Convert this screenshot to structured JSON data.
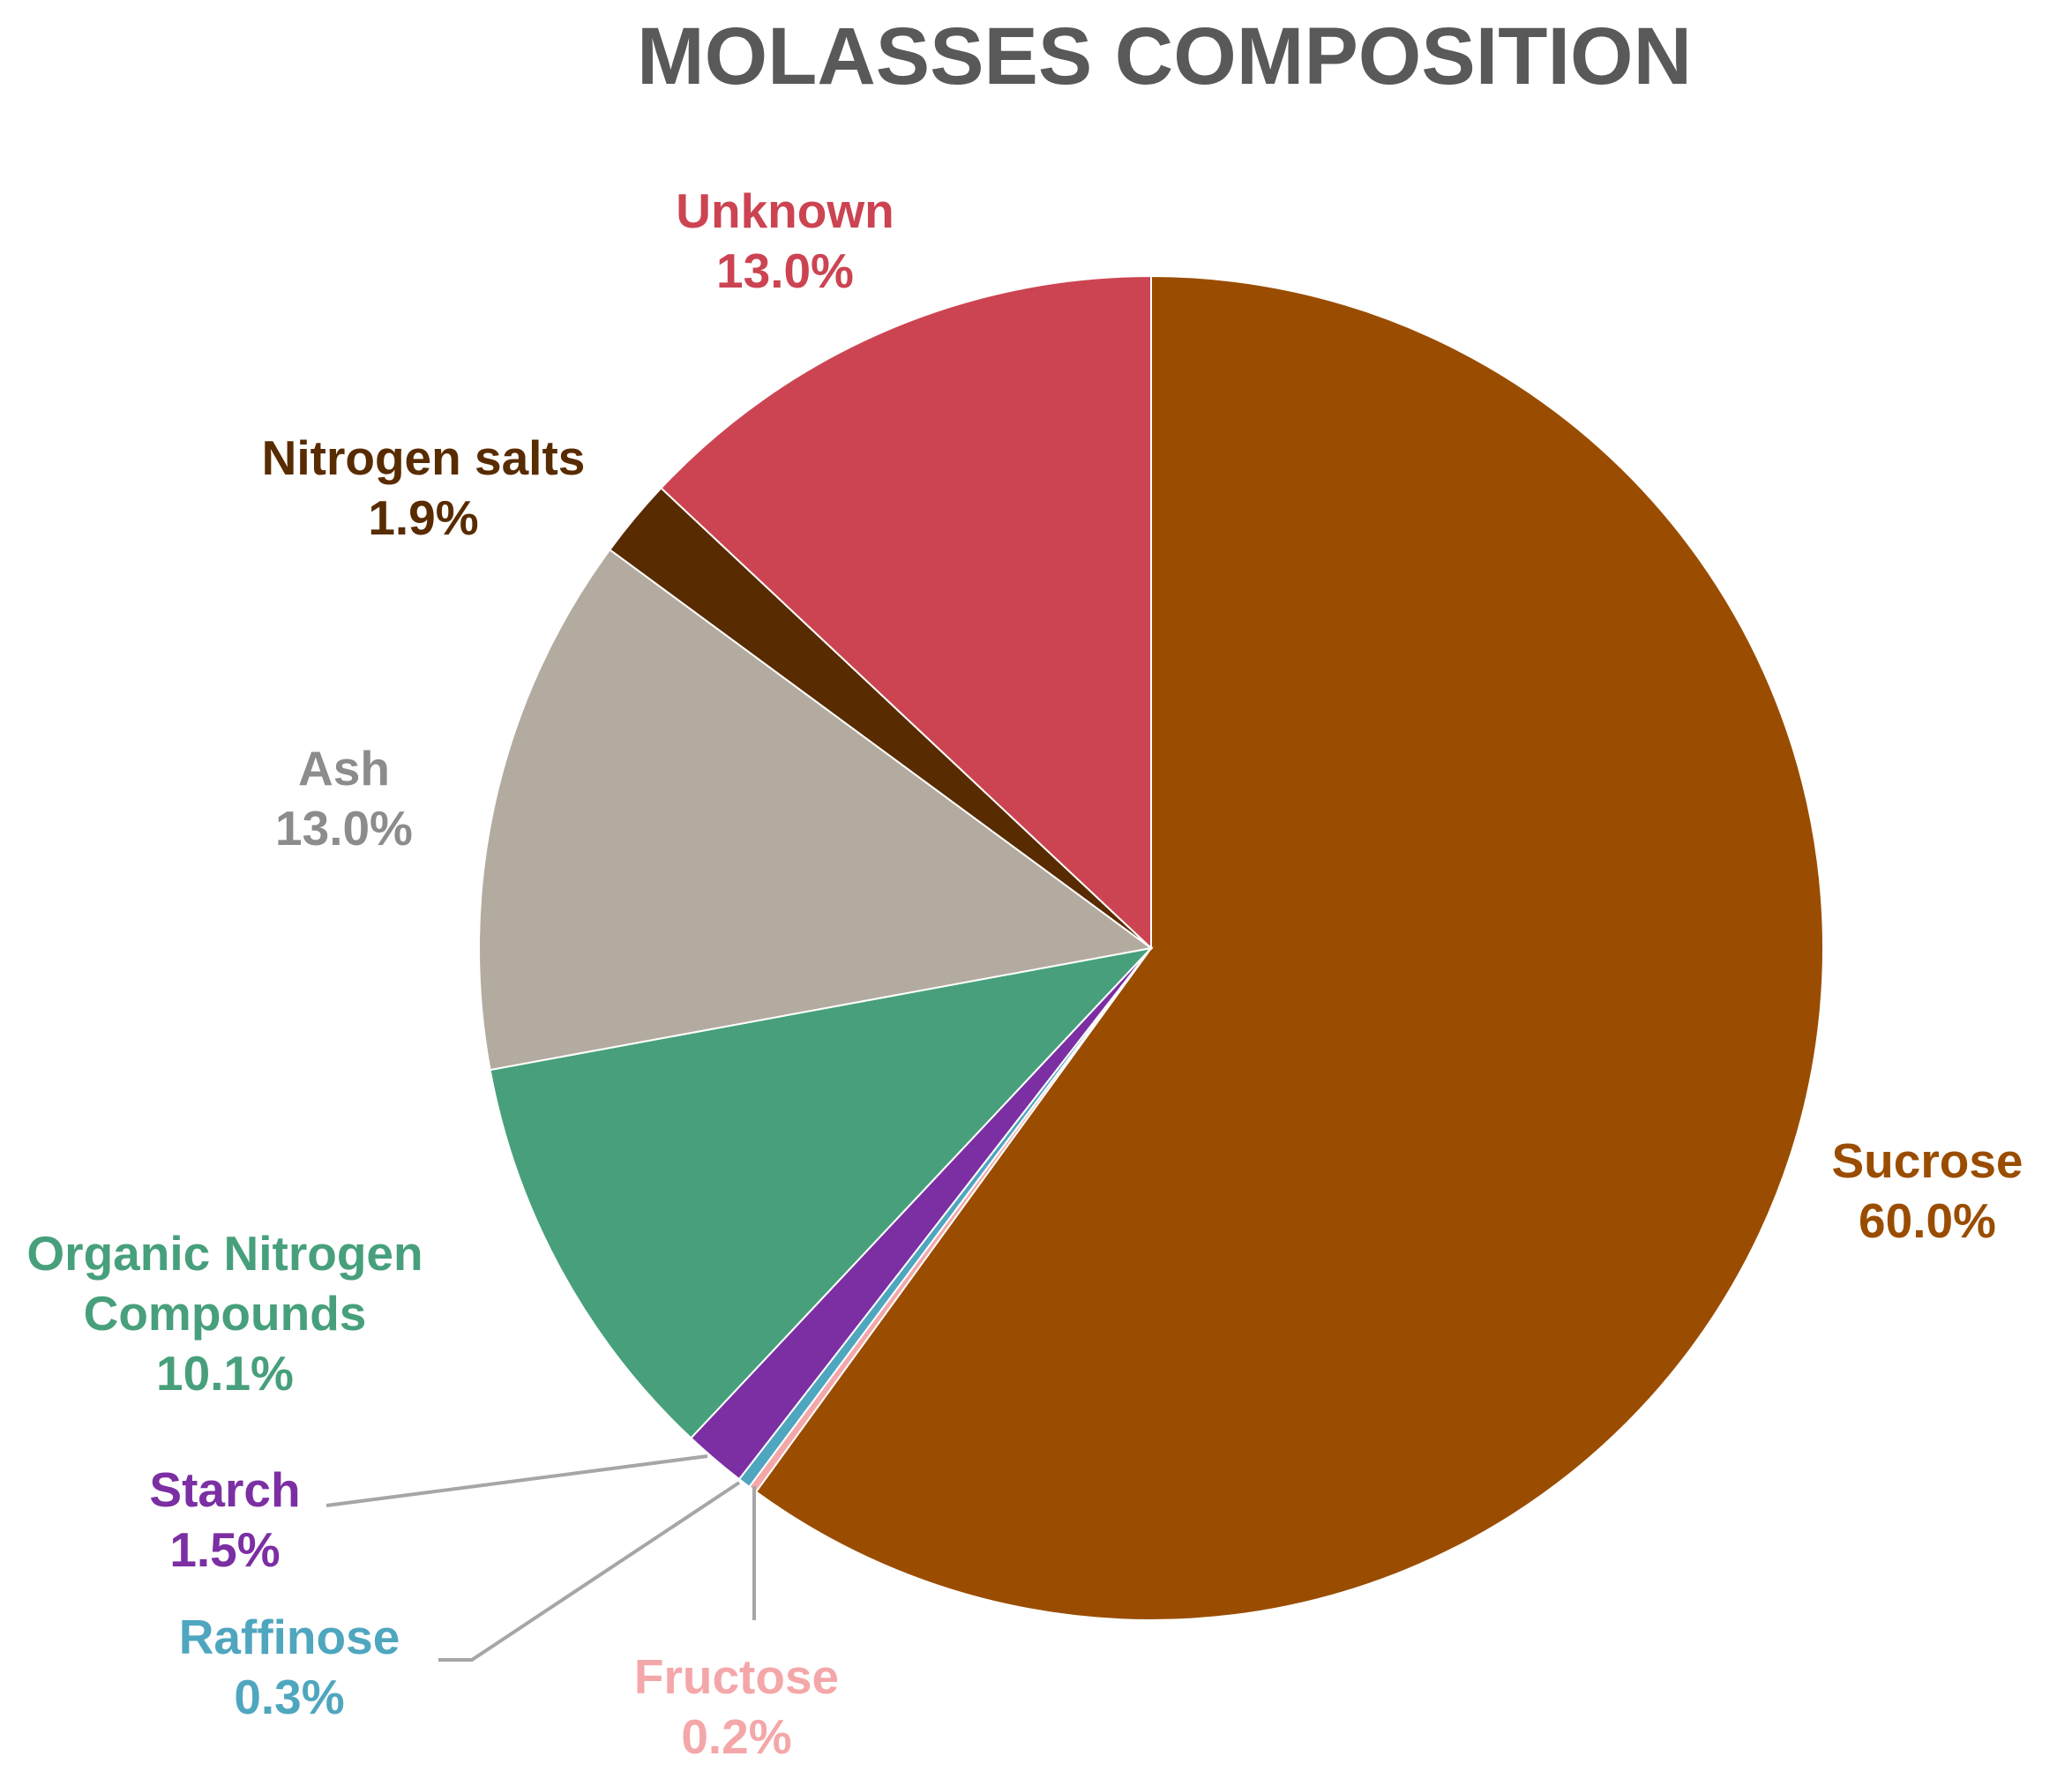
{
  "chart_data": {
    "type": "pie",
    "title": "MOLASSES COMPOSITION",
    "slices": [
      {
        "label": "Sucrose",
        "value": 60.0,
        "value_label": "60.0%",
        "color": "#9A4D00"
      },
      {
        "label": "Fructose",
        "value": 0.2,
        "value_label": "0.2%",
        "color": "#F4A7A9"
      },
      {
        "label": "Raffinose",
        "value": 0.3,
        "value_label": "0.3%",
        "color": "#4FA6BF"
      },
      {
        "label": "Starch",
        "value": 1.5,
        "value_label": "1.5%",
        "color": "#7B2FA3"
      },
      {
        "label": "Organic Nitrogen Compounds",
        "label_lines": [
          "Organic Nitrogen",
          "Compounds"
        ],
        "value": 10.1,
        "value_label": "10.1%",
        "color": "#47A07B"
      },
      {
        "label": "Ash",
        "value": 13.0,
        "value_label": "13.0%",
        "color": "#B3ABA0",
        "text_color": "#8C8C8C"
      },
      {
        "label": "Nitrogen salts",
        "value": 1.9,
        "value_label": "1.9%",
        "color": "#582B00"
      },
      {
        "label": "Unknown",
        "value": 13.0,
        "value_label": "13.0%",
        "color": "#CC4452"
      }
    ],
    "start_angle_deg": 0,
    "direction": "clockwise",
    "data_labels": "outside",
    "leader_lines": true,
    "legend": "none"
  }
}
